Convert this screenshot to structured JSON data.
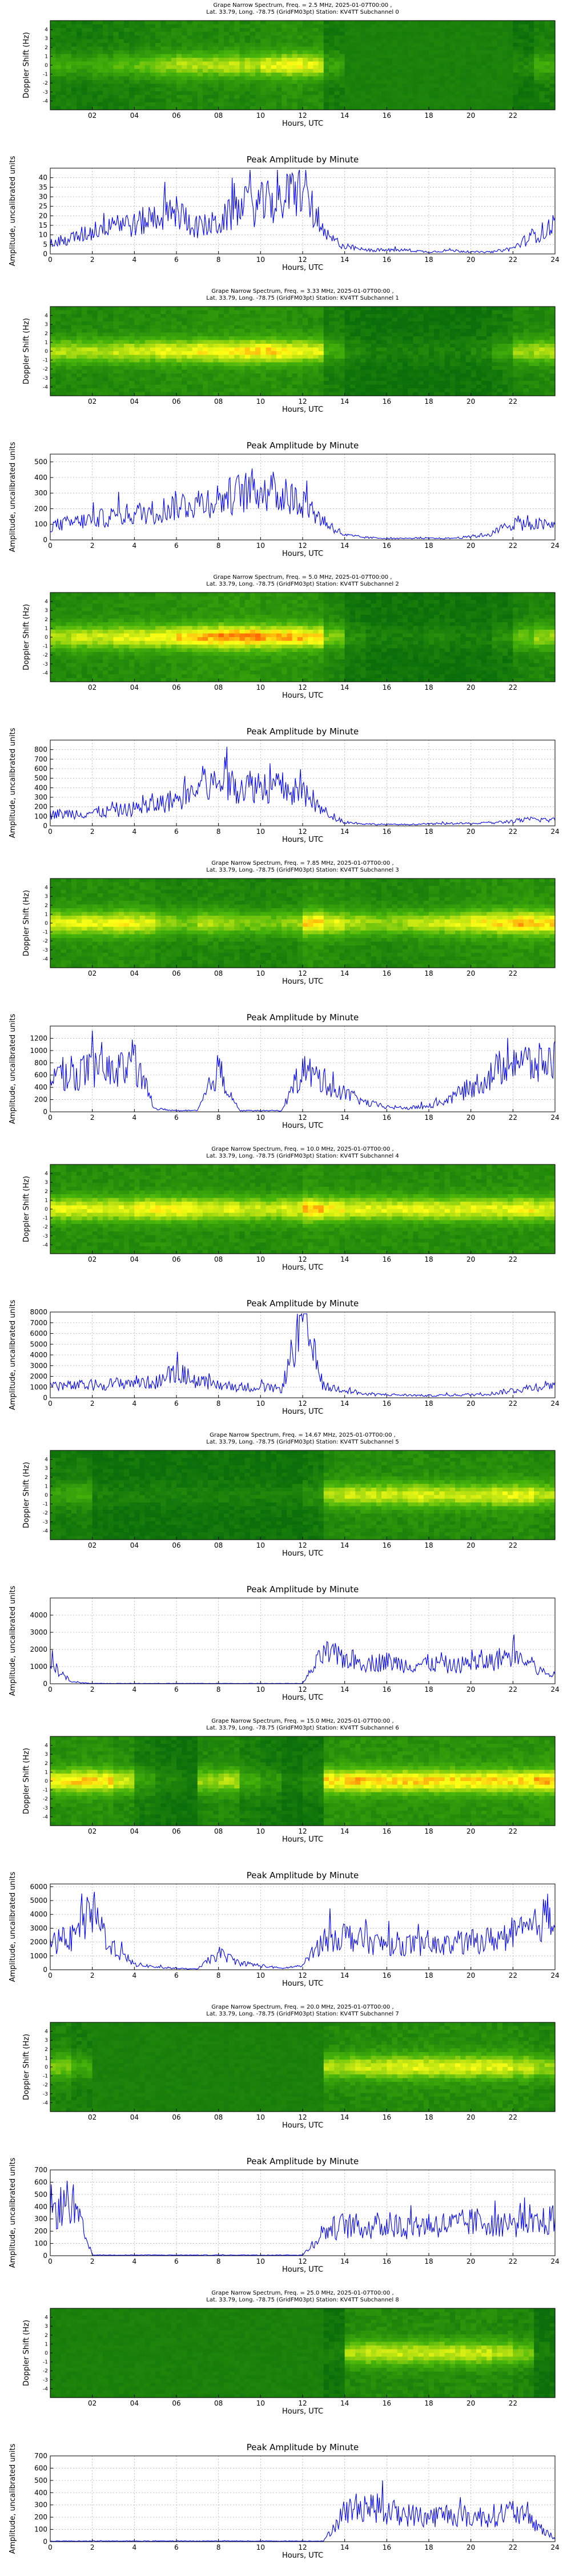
{
  "page": {
    "heatmap_xlabel": "Hours, UTC",
    "heatmap_ylabel": "Doppler Shift (Hz)",
    "line_title": "Peak Amplitude by Minute",
    "line_xlabel": "Hours, UTC",
    "line_ylabel": "Amplitude, uncalibrated units",
    "colors": {
      "line": "#0000ff",
      "grid": "#b0b0b0",
      "heat_low": "#0b7a0b",
      "heat_mid": "#ffff00",
      "heat_high": "#ff3300"
    }
  },
  "chart_data": [
    {
      "type": "heatmap",
      "title": "Grape Narrow Spectrum, Freq. = 2.5 MHz, 2025-01-07T00:00 ,\nLat.  33.79, Long. -78.75 (GridFM03pt) Station: KV4TT Subchannel 0",
      "xlabel": "Hours, UTC",
      "ylabel": "Doppler Shift (Hz)",
      "x_ticks": [
        "02",
        "04",
        "06",
        "08",
        "10",
        "12",
        "14",
        "16",
        "18",
        "20",
        "22"
      ],
      "y_ticks": [
        "4",
        "3",
        "2",
        "1",
        "0",
        "-1",
        "-2",
        "-3",
        "-4"
      ],
      "xlim": [
        0,
        24
      ],
      "ylim": [
        -5,
        5
      ],
      "intensity_by_hour": [
        0.35,
        0.3,
        0.35,
        0.4,
        0.45,
        0.55,
        0.6,
        0.6,
        0.65,
        0.6,
        0.7,
        0.75,
        0.7,
        0.3,
        0.05,
        0.05,
        0.05,
        0.05,
        0.05,
        0.05,
        0.05,
        0.05,
        0.15,
        0.35
      ]
    },
    {
      "type": "line",
      "title": "Peak Amplitude by Minute",
      "xlabel": "Hours, UTC",
      "ylabel": "Amplitude, uncalibrated units",
      "x_ticks": [
        0,
        2,
        4,
        6,
        8,
        10,
        12,
        14,
        16,
        18,
        20,
        22,
        24
      ],
      "y_ticks": [
        0,
        5,
        10,
        15,
        20,
        25,
        30,
        35,
        40
      ],
      "xlim": [
        0,
        24
      ],
      "ylim": [
        0,
        45
      ],
      "hourly_profile": [
        5,
        8,
        12,
        18,
        15,
        20,
        22,
        14,
        16,
        24,
        26,
        28,
        35,
        10,
        4,
        2,
        2,
        2,
        1,
        2,
        1,
        1,
        3,
        10,
        14
      ]
    },
    {
      "type": "heatmap",
      "title": "Grape Narrow Spectrum, Freq. = 3.33 MHz, 2025-01-07T00:00 ,\nLat.  33.79, Long. -78.75 (GridFM03pt) Station: KV4TT Subchannel 1",
      "xlabel": "Hours, UTC",
      "ylabel": "Doppler Shift (Hz)",
      "x_ticks": [
        "02",
        "04",
        "06",
        "08",
        "10",
        "12",
        "14",
        "16",
        "18",
        "20",
        "22"
      ],
      "y_ticks": [
        "4",
        "3",
        "2",
        "1",
        "0",
        "-1",
        "-2",
        "-3",
        "-4"
      ],
      "xlim": [
        0,
        24
      ],
      "ylim": [
        -5,
        5
      ],
      "intensity_by_hour": [
        0.6,
        0.6,
        0.6,
        0.65,
        0.65,
        0.7,
        0.7,
        0.75,
        0.75,
        0.8,
        0.8,
        0.75,
        0.7,
        0.35,
        0.15,
        0.1,
        0.1,
        0.1,
        0.1,
        0.1,
        0.15,
        0.3,
        0.55,
        0.6
      ]
    },
    {
      "type": "line",
      "title": "Peak Amplitude by Minute",
      "xlabel": "Hours, UTC",
      "ylabel": "Amplitude, uncalibrated units",
      "x_ticks": [
        0,
        2,
        4,
        6,
        8,
        10,
        12,
        14,
        16,
        18,
        20,
        22,
        24
      ],
      "y_ticks": [
        0,
        100,
        200,
        300,
        400,
        500
      ],
      "xlim": [
        0,
        24
      ],
      "ylim": [
        0,
        550
      ],
      "hourly_profile": [
        90,
        110,
        130,
        150,
        170,
        180,
        220,
        240,
        260,
        300,
        330,
        280,
        250,
        120,
        30,
        15,
        10,
        10,
        10,
        10,
        20,
        40,
        110,
        100,
        90
      ]
    },
    {
      "type": "heatmap",
      "title": "Grape Narrow Spectrum, Freq. = 5.0 MHz, 2025-01-07T00:00 ,\nLat.  33.79, Long. -78.75 (GridFM03pt) Station: KV4TT Subchannel 2",
      "xlabel": "Hours, UTC",
      "ylabel": "Doppler Shift (Hz)",
      "x_ticks": [
        "02",
        "04",
        "06",
        "08",
        "10",
        "12",
        "14",
        "16",
        "18",
        "20",
        "22"
      ],
      "y_ticks": [
        "4",
        "3",
        "2",
        "1",
        "0",
        "-1",
        "-2",
        "-3",
        "-4"
      ],
      "xlim": [
        0,
        24
      ],
      "ylim": [
        -5,
        5
      ],
      "intensity_by_hour": [
        0.6,
        0.65,
        0.65,
        0.7,
        0.7,
        0.75,
        0.8,
        0.85,
        0.9,
        0.9,
        0.85,
        0.85,
        0.8,
        0.5,
        0.2,
        0.1,
        0.1,
        0.1,
        0.15,
        0.1,
        0.1,
        0.2,
        0.45,
        0.55
      ]
    },
    {
      "type": "line",
      "title": "Peak Amplitude by Minute",
      "xlabel": "Hours, UTC",
      "ylabel": "Amplitude, uncalibrated units",
      "x_ticks": [
        0,
        2,
        4,
        6,
        8,
        10,
        12,
        14,
        16,
        18,
        20,
        22,
        24
      ],
      "y_ticks": [
        0,
        100,
        200,
        300,
        400,
        500,
        600,
        700,
        800
      ],
      "xlim": [
        0,
        24
      ],
      "ylim": [
        0,
        900
      ],
      "hourly_profile": [
        120,
        130,
        140,
        150,
        180,
        220,
        280,
        380,
        450,
        420,
        430,
        400,
        330,
        150,
        40,
        20,
        15,
        15,
        20,
        25,
        25,
        30,
        50,
        70,
        60
      ]
    },
    {
      "type": "heatmap",
      "title": "Grape Narrow Spectrum, Freq. = 7.85 MHz, 2025-01-07T00:00 ,\nLat.  33.79, Long. -78.75 (GridFM03pt) Station: KV4TT Subchannel 3",
      "xlabel": "Hours, UTC",
      "ylabel": "Doppler Shift (Hz)",
      "x_ticks": [
        "02",
        "04",
        "06",
        "08",
        "10",
        "12",
        "14",
        "16",
        "18",
        "20",
        "22"
      ],
      "y_ticks": [
        "4",
        "3",
        "2",
        "1",
        "0",
        "-1",
        "-2",
        "-3",
        "-4"
      ],
      "xlim": [
        0,
        24
      ],
      "ylim": [
        -5,
        5
      ],
      "intensity_by_hour": [
        0.7,
        0.7,
        0.7,
        0.75,
        0.7,
        0.55,
        0.5,
        0.6,
        0.55,
        0.5,
        0.5,
        0.55,
        0.8,
        0.7,
        0.6,
        0.55,
        0.55,
        0.6,
        0.65,
        0.7,
        0.75,
        0.8,
        0.85,
        0.8
      ]
    },
    {
      "type": "line",
      "title": "Peak Amplitude by Minute",
      "xlabel": "Hours, UTC",
      "ylabel": "Amplitude, uncalibrated units",
      "x_ticks": [
        0,
        2,
        4,
        6,
        8,
        10,
        12,
        14,
        16,
        18,
        20,
        22,
        24
      ],
      "y_ticks": [
        0,
        200,
        400,
        600,
        800,
        1000,
        1200
      ],
      "xlim": [
        0,
        24
      ],
      "ylim": [
        0,
        1400
      ],
      "hourly_profile": [
        650,
        600,
        700,
        650,
        800,
        50,
        20,
        20,
        700,
        20,
        20,
        20,
        700,
        500,
        300,
        150,
        80,
        60,
        100,
        200,
        400,
        600,
        900,
        750,
        850
      ]
    },
    {
      "type": "heatmap",
      "title": "Grape Narrow Spectrum, Freq. = 10.0 MHz, 2025-01-07T00:00 ,\nLat.  33.79, Long. -78.75 (GridFM03pt) Station: KV4TT Subchannel 4",
      "xlabel": "Hours, UTC",
      "ylabel": "Doppler Shift (Hz)",
      "x_ticks": [
        "02",
        "04",
        "06",
        "08",
        "10",
        "12",
        "14",
        "16",
        "18",
        "20",
        "22"
      ],
      "y_ticks": [
        "4",
        "3",
        "2",
        "1",
        "0",
        "-1",
        "-2",
        "-3",
        "-4"
      ],
      "xlim": [
        0,
        24
      ],
      "ylim": [
        -5,
        5
      ],
      "intensity_by_hour": [
        0.7,
        0.7,
        0.7,
        0.7,
        0.75,
        0.75,
        0.75,
        0.7,
        0.7,
        0.65,
        0.65,
        0.7,
        0.85,
        0.75,
        0.7,
        0.7,
        0.7,
        0.7,
        0.7,
        0.7,
        0.7,
        0.7,
        0.75,
        0.7
      ]
    },
    {
      "type": "line",
      "title": "Peak Amplitude by Minute",
      "xlabel": "Hours, UTC",
      "ylabel": "Amplitude, uncalibrated units",
      "x_ticks": [
        0,
        2,
        4,
        6,
        8,
        10,
        12,
        14,
        16,
        18,
        20,
        22,
        24
      ],
      "y_ticks": [
        0,
        1000,
        2000,
        3000,
        4000,
        5000,
        6000,
        7000,
        8000
      ],
      "xlim": [
        0,
        24
      ],
      "ylim": [
        0,
        8000
      ],
      "hourly_profile": [
        1200,
        1100,
        1200,
        1300,
        1500,
        1400,
        2500,
        1500,
        1200,
        1000,
        1000,
        800,
        7500,
        1000,
        800,
        300,
        300,
        250,
        200,
        250,
        300,
        400,
        700,
        1000,
        1300
      ]
    },
    {
      "type": "heatmap",
      "title": "Grape Narrow Spectrum, Freq. = 14.67 MHz, 2025-01-07T00:00 ,\nLat.  33.79, Long. -78.75 (GridFM03pt) Station: KV4TT Subchannel 5",
      "xlabel": "Hours, UTC",
      "ylabel": "Doppler Shift (Hz)",
      "x_ticks": [
        "02",
        "04",
        "06",
        "08",
        "10",
        "12",
        "14",
        "16",
        "18",
        "20",
        "22"
      ],
      "y_ticks": [
        "4",
        "3",
        "2",
        "1",
        "0",
        "-1",
        "-2",
        "-3",
        "-4"
      ],
      "xlim": [
        0,
        24
      ],
      "ylim": [
        -5,
        5
      ],
      "intensity_by_hour": [
        0.3,
        0.35,
        0.1,
        0.1,
        0.1,
        0.1,
        0.1,
        0.1,
        0.1,
        0.1,
        0.1,
        0.1,
        0.2,
        0.6,
        0.65,
        0.65,
        0.65,
        0.7,
        0.65,
        0.65,
        0.65,
        0.7,
        0.7,
        0.6
      ]
    },
    {
      "type": "line",
      "title": "Peak Amplitude by Minute",
      "xlabel": "Hours, UTC",
      "ylabel": "Amplitude, uncalibrated units",
      "x_ticks": [
        0,
        2,
        4,
        6,
        8,
        10,
        12,
        14,
        16,
        18,
        20,
        22,
        24
      ],
      "y_ticks": [
        0,
        1000,
        2000,
        3000,
        4000
      ],
      "xlim": [
        0,
        24
      ],
      "ylim": [
        0,
        5000
      ],
      "hourly_profile": [
        1200,
        100,
        20,
        20,
        20,
        20,
        20,
        20,
        20,
        20,
        20,
        20,
        20,
        1800,
        1500,
        1200,
        1300,
        1100,
        1200,
        1000,
        1200,
        1300,
        1800,
        900,
        400
      ]
    },
    {
      "type": "heatmap",
      "title": "Grape Narrow Spectrum, Freq. = 15.0 MHz, 2025-01-07T00:00 ,\nLat.  33.79, Long. -78.75 (GridFM03pt) Station: KV4TT Subchannel 6",
      "xlabel": "Hours, UTC",
      "ylabel": "Doppler Shift (Hz)",
      "x_ticks": [
        "02",
        "04",
        "06",
        "08",
        "10",
        "12",
        "14",
        "16",
        "18",
        "20",
        "22"
      ],
      "y_ticks": [
        "4",
        "3",
        "2",
        "1",
        "0",
        "-1",
        "-2",
        "-3",
        "-4"
      ],
      "xlim": [
        0,
        24
      ],
      "ylim": [
        -5,
        5
      ],
      "intensity_by_hour": [
        0.75,
        0.8,
        0.8,
        0.65,
        0.3,
        0.15,
        0.1,
        0.55,
        0.6,
        0.35,
        0.25,
        0.1,
        0.2,
        0.8,
        0.85,
        0.8,
        0.8,
        0.8,
        0.8,
        0.8,
        0.8,
        0.8,
        0.8,
        0.85
      ]
    },
    {
      "type": "line",
      "title": "Peak Amplitude by Minute",
      "xlabel": "Hours, UTC",
      "ylabel": "Amplitude, uncalibrated units",
      "x_ticks": [
        0,
        2,
        4,
        6,
        8,
        10,
        12,
        14,
        16,
        18,
        20,
        22,
        24
      ],
      "y_ticks": [
        0,
        1000,
        2000,
        3000,
        4000,
        5000,
        6000
      ],
      "xlim": [
        0,
        24
      ],
      "ylim": [
        0,
        6200
      ],
      "hourly_profile": [
        2000,
        2200,
        4200,
        1500,
        400,
        200,
        100,
        50,
        1200,
        500,
        300,
        100,
        300,
        2200,
        2500,
        2000,
        1800,
        1800,
        1700,
        1800,
        2000,
        2200,
        2500,
        3000,
        4500
      ]
    },
    {
      "type": "heatmap",
      "title": "Grape Narrow Spectrum, Freq. = 20.0 MHz, 2025-01-07T00:00 ,\nLat.  33.79, Long. -78.75 (GridFM03pt) Station: KV4TT Subchannel 7",
      "xlabel": "Hours, UTC",
      "ylabel": "Doppler Shift (Hz)",
      "x_ticks": [
        "02",
        "04",
        "06",
        "08",
        "10",
        "12",
        "14",
        "16",
        "18",
        "20",
        "22"
      ],
      "y_ticks": [
        "4",
        "3",
        "2",
        "1",
        "0",
        "-1",
        "-2",
        "-3",
        "-4"
      ],
      "xlim": [
        0,
        24
      ],
      "ylim": [
        -5,
        5
      ],
      "intensity_by_hour": [
        0.5,
        0.35,
        0.05,
        0.05,
        0.05,
        0.05,
        0.05,
        0.05,
        0.05,
        0.05,
        0.05,
        0.05,
        0.05,
        0.6,
        0.65,
        0.65,
        0.7,
        0.7,
        0.7,
        0.7,
        0.7,
        0.7,
        0.65,
        0.55
      ]
    },
    {
      "type": "line",
      "title": "Peak Amplitude by Minute",
      "xlabel": "Hours, UTC",
      "ylabel": "Amplitude, uncalibrated units",
      "x_ticks": [
        0,
        2,
        4,
        6,
        8,
        10,
        12,
        14,
        16,
        18,
        20,
        22,
        24
      ],
      "y_ticks": [
        0,
        100,
        200,
        300,
        400,
        500,
        600,
        700
      ],
      "xlim": [
        0,
        24
      ],
      "ylim": [
        0,
        700
      ],
      "hourly_profile": [
        350,
        450,
        5,
        5,
        5,
        5,
        5,
        5,
        5,
        5,
        5,
        5,
        5,
        200,
        250,
        230,
        250,
        240,
        260,
        250,
        270,
        280,
        260,
        250,
        300
      ]
    },
    {
      "type": "heatmap",
      "title": "Grape Narrow Spectrum, Freq. = 25.0 MHz, 2025-01-07T00:00 ,\nLat.  33.79, Long. -78.75 (GridFM03pt) Station: KV4TT Subchannel 8",
      "xlabel": "Hours, UTC",
      "ylabel": "Doppler Shift (Hz)",
      "x_ticks": [
        "02",
        "04",
        "06",
        "08",
        "10",
        "12",
        "14",
        "16",
        "18",
        "20",
        "22"
      ],
      "y_ticks": [
        "4",
        "3",
        "2",
        "1",
        "0",
        "-1",
        "-2",
        "-3",
        "-4"
      ],
      "xlim": [
        0,
        24
      ],
      "ylim": [
        -5,
        5
      ],
      "intensity_by_hour": [
        0.05,
        0.05,
        0.05,
        0.05,
        0.05,
        0.05,
        0.05,
        0.05,
        0.05,
        0.05,
        0.05,
        0.05,
        0.05,
        0.1,
        0.6,
        0.65,
        0.65,
        0.65,
        0.65,
        0.65,
        0.65,
        0.6,
        0.5,
        0.1
      ]
    },
    {
      "type": "line",
      "title": "Peak Amplitude by Minute",
      "xlabel": "Hours, UTC",
      "ylabel": "Amplitude, uncalibrated units",
      "x_ticks": [
        0,
        2,
        4,
        6,
        8,
        10,
        12,
        14,
        16,
        18,
        20,
        22,
        24
      ],
      "y_ticks": [
        0,
        100,
        200,
        300,
        400,
        500,
        600,
        700
      ],
      "xlim": [
        0,
        24
      ],
      "ylim": [
        0,
        700
      ],
      "hourly_profile": [
        5,
        5,
        5,
        5,
        5,
        5,
        5,
        5,
        5,
        5,
        5,
        5,
        5,
        5,
        250,
        300,
        250,
        220,
        200,
        230,
        200,
        210,
        250,
        150,
        20
      ]
    }
  ]
}
